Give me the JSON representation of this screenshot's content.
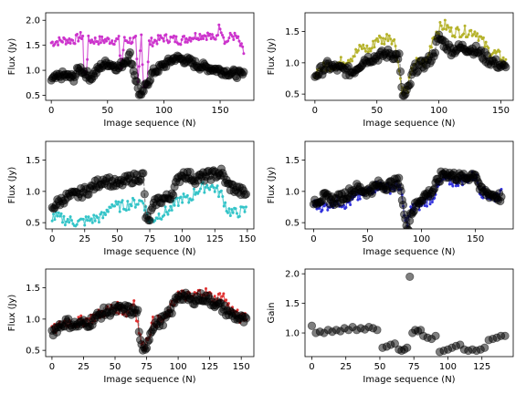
{
  "colors": {
    "magenta": "#cc33cc",
    "olive": "#b5b22a",
    "cyan": "#33c4c8",
    "blue": "#3333dd",
    "red": "#e03030",
    "ref": "#555555",
    "ref_marker": "#000000"
  },
  "chart_data": [
    {
      "type": "line",
      "xlabel": "Image sequence (N)",
      "ylabel": "Flux (Jy)",
      "xlim": [
        -5,
        180
      ],
      "ylim": [
        0.4,
        2.15
      ],
      "xticks": [
        0,
        50,
        100,
        150
      ],
      "yticks": [
        0.5,
        1.0,
        1.5,
        2.0
      ],
      "ytick_labels": [
        "0.5",
        "1.0",
        "1.5",
        "2.0"
      ],
      "series_color_key": "magenta",
      "series_start": 0,
      "series_n": 172,
      "series_anchors": [
        [
          0,
          1.55
        ],
        [
          10,
          1.6
        ],
        [
          20,
          1.6
        ],
        [
          28,
          1.7
        ],
        [
          29,
          0.95
        ],
        [
          31,
          0.95
        ],
        [
          33,
          1.6
        ],
        [
          45,
          1.6
        ],
        [
          50,
          1.6
        ],
        [
          60,
          1.6
        ],
        [
          62,
          1.05
        ],
        [
          65,
          1.6
        ],
        [
          75,
          1.6
        ],
        [
          77,
          0.7
        ],
        [
          80,
          1.7
        ],
        [
          82,
          0.7
        ],
        [
          85,
          0.72
        ],
        [
          87,
          1.55
        ],
        [
          100,
          1.65
        ],
        [
          115,
          1.6
        ],
        [
          130,
          1.7
        ],
        [
          140,
          1.7
        ],
        [
          145,
          1.6
        ],
        [
          150,
          1.9
        ],
        [
          155,
          1.55
        ],
        [
          160,
          1.7
        ],
        [
          165,
          1.65
        ],
        [
          171,
          1.35
        ]
      ],
      "ref_start": 0,
      "ref_n": 172,
      "ref_anchors": [
        [
          0,
          0.8
        ],
        [
          10,
          0.9
        ],
        [
          20,
          0.85
        ],
        [
          25,
          1.05
        ],
        [
          35,
          0.85
        ],
        [
          45,
          1.1
        ],
        [
          50,
          1.15
        ],
        [
          60,
          1.05
        ],
        [
          70,
          1.3
        ],
        [
          78,
          0.55
        ],
        [
          80,
          0.45
        ],
        [
          82,
          0.6
        ],
        [
          90,
          0.95
        ],
        [
          100,
          1.1
        ],
        [
          110,
          1.25
        ],
        [
          120,
          1.2
        ],
        [
          130,
          1.1
        ],
        [
          140,
          1.05
        ],
        [
          150,
          1.0
        ],
        [
          160,
          0.95
        ],
        [
          171,
          0.9
        ]
      ]
    },
    {
      "type": "line",
      "xlabel": "Image sequence (N)",
      "ylabel": "Flux (Jy)",
      "xlim": [
        -8,
        160
      ],
      "ylim": [
        0.4,
        1.8
      ],
      "xticks": [
        0,
        50,
        100,
        150
      ],
      "yticks": [
        0.5,
        1.0,
        1.5
      ],
      "ytick_labels": [
        "0.5",
        "1.0",
        "1.5"
      ],
      "series_color_key": "olive",
      "series_start": 0,
      "series_n": 155,
      "series_anchors": [
        [
          0,
          0.85
        ],
        [
          10,
          0.95
        ],
        [
          20,
          1.0
        ],
        [
          30,
          1.1
        ],
        [
          38,
          1.25
        ],
        [
          45,
          1.2
        ],
        [
          50,
          1.4
        ],
        [
          55,
          1.35
        ],
        [
          60,
          1.45
        ],
        [
          65,
          1.3
        ],
        [
          70,
          0.6
        ],
        [
          72,
          0.5
        ],
        [
          75,
          0.6
        ],
        [
          80,
          1.0
        ],
        [
          90,
          1.0
        ],
        [
          95,
          1.4
        ],
        [
          100,
          1.55
        ],
        [
          105,
          1.6
        ],
        [
          110,
          1.5
        ],
        [
          120,
          1.5
        ],
        [
          130,
          1.5
        ],
        [
          140,
          1.2
        ],
        [
          150,
          1.1
        ],
        [
          154,
          1.0
        ]
      ],
      "ref_start": 0,
      "ref_n": 155,
      "ref_anchors": [
        [
          0,
          0.8
        ],
        [
          10,
          0.95
        ],
        [
          20,
          0.9
        ],
        [
          30,
          0.85
        ],
        [
          40,
          1.05
        ],
        [
          50,
          1.1
        ],
        [
          60,
          1.15
        ],
        [
          68,
          1.1
        ],
        [
          70,
          0.55
        ],
        [
          72,
          0.45
        ],
        [
          76,
          0.6
        ],
        [
          80,
          0.9
        ],
        [
          90,
          1.0
        ],
        [
          95,
          1.1
        ],
        [
          100,
          1.4
        ],
        [
          105,
          1.3
        ],
        [
          110,
          1.2
        ],
        [
          120,
          1.25
        ],
        [
          130,
          1.2
        ],
        [
          140,
          1.05
        ],
        [
          150,
          0.95
        ],
        [
          154,
          0.9
        ]
      ]
    },
    {
      "type": "line",
      "xlabel": "Image sequence (N)",
      "ylabel": "Flux (Jy)",
      "xlim": [
        -5,
        155
      ],
      "ylim": [
        0.4,
        1.8
      ],
      "xticks": [
        0,
        25,
        50,
        75,
        100,
        125,
        150
      ],
      "yticks": [
        0.5,
        1.0,
        1.5
      ],
      "ytick_labels": [
        "0.5",
        "1.0",
        "1.5"
      ],
      "series_color_key": "cyan",
      "series_start": 0,
      "series_n": 150,
      "series_anchors": [
        [
          0,
          0.6
        ],
        [
          10,
          0.55
        ],
        [
          20,
          0.5
        ],
        [
          30,
          0.55
        ],
        [
          40,
          0.6
        ],
        [
          45,
          0.8
        ],
        [
          50,
          0.75
        ],
        [
          60,
          0.8
        ],
        [
          70,
          0.85
        ],
        [
          75,
          0.5
        ],
        [
          80,
          0.6
        ],
        [
          90,
          0.7
        ],
        [
          100,
          0.9
        ],
        [
          105,
          0.85
        ],
        [
          110,
          1.0
        ],
        [
          120,
          1.1
        ],
        [
          125,
          1.05
        ],
        [
          130,
          0.95
        ],
        [
          135,
          0.7
        ],
        [
          140,
          0.65
        ],
        [
          149,
          0.7
        ]
      ],
      "ref_start": 0,
      "ref_n": 150,
      "ref_anchors": [
        [
          0,
          0.75
        ],
        [
          10,
          0.9
        ],
        [
          20,
          0.95
        ],
        [
          30,
          1.05
        ],
        [
          40,
          1.2
        ],
        [
          50,
          1.1
        ],
        [
          60,
          1.2
        ],
        [
          70,
          1.25
        ],
        [
          72,
          0.6
        ],
        [
          74,
          0.5
        ],
        [
          76,
          0.65
        ],
        [
          80,
          0.85
        ],
        [
          90,
          0.9
        ],
        [
          95,
          1.1
        ],
        [
          100,
          1.3
        ],
        [
          110,
          1.2
        ],
        [
          120,
          1.25
        ],
        [
          130,
          1.3
        ],
        [
          135,
          1.1
        ],
        [
          140,
          1.05
        ],
        [
          149,
          0.95
        ]
      ]
    },
    {
      "type": "line",
      "xlabel": "Image sequence (N)",
      "ylabel": "Flux (Jy)",
      "xlim": [
        -8,
        185
      ],
      "ylim": [
        0.4,
        1.8
      ],
      "xticks": [
        0,
        50,
        100,
        150
      ],
      "yticks": [
        0.5,
        1.0,
        1.5
      ],
      "ytick_labels": [
        "0.5",
        "1.0",
        "1.5"
      ],
      "series_color_key": "blue",
      "series_start": 0,
      "series_n": 175,
      "series_anchors": [
        [
          0,
          0.8
        ],
        [
          10,
          0.75
        ],
        [
          20,
          0.85
        ],
        [
          30,
          0.8
        ],
        [
          40,
          0.9
        ],
        [
          50,
          1.0
        ],
        [
          60,
          1.1
        ],
        [
          70,
          1.05
        ],
        [
          80,
          1.1
        ],
        [
          85,
          0.5
        ],
        [
          88,
          0.55
        ],
        [
          90,
          0.7
        ],
        [
          100,
          0.8
        ],
        [
          110,
          0.9
        ],
        [
          120,
          1.2
        ],
        [
          130,
          1.15
        ],
        [
          140,
          1.2
        ],
        [
          150,
          1.25
        ],
        [
          155,
          1.0
        ],
        [
          165,
          0.9
        ],
        [
          174,
          0.95
        ]
      ],
      "ref_start": 0,
      "ref_n": 175,
      "ref_anchors": [
        [
          0,
          0.85
        ],
        [
          10,
          0.9
        ],
        [
          20,
          0.85
        ],
        [
          30,
          0.95
        ],
        [
          40,
          1.05
        ],
        [
          50,
          1.0
        ],
        [
          60,
          1.1
        ],
        [
          70,
          1.1
        ],
        [
          80,
          1.15
        ],
        [
          85,
          0.5
        ],
        [
          88,
          0.45
        ],
        [
          90,
          0.65
        ],
        [
          100,
          0.9
        ],
        [
          110,
          1.0
        ],
        [
          120,
          1.3
        ],
        [
          130,
          1.25
        ],
        [
          140,
          1.2
        ],
        [
          150,
          1.3
        ],
        [
          155,
          1.0
        ],
        [
          165,
          0.95
        ],
        [
          174,
          0.9
        ]
      ]
    },
    {
      "type": "line",
      "xlabel": "Image sequence (N)",
      "ylabel": "Flux (Jy)",
      "xlim": [
        -5,
        160
      ],
      "ylim": [
        0.4,
        1.8
      ],
      "xticks": [
        0,
        25,
        50,
        75,
        100,
        125,
        150
      ],
      "yticks": [
        0.5,
        1.0,
        1.5
      ],
      "ytick_labels": [
        "0.5",
        "1.0",
        "1.5"
      ],
      "series_color_key": "red",
      "series_start": 0,
      "series_n": 155,
      "series_anchors": [
        [
          0,
          0.8
        ],
        [
          10,
          0.95
        ],
        [
          20,
          0.95
        ],
        [
          30,
          1.0
        ],
        [
          40,
          1.1
        ],
        [
          50,
          1.2
        ],
        [
          60,
          1.1
        ],
        [
          65,
          1.3
        ],
        [
          70,
          0.7
        ],
        [
          72,
          0.55
        ],
        [
          75,
          0.65
        ],
        [
          80,
          0.95
        ],
        [
          90,
          1.0
        ],
        [
          95,
          1.2
        ],
        [
          100,
          1.4
        ],
        [
          110,
          1.35
        ],
        [
          120,
          1.45
        ],
        [
          130,
          1.3
        ],
        [
          135,
          1.4
        ],
        [
          140,
          1.2
        ],
        [
          150,
          1.0
        ],
        [
          154,
          1.05
        ]
      ],
      "ref_start": 0,
      "ref_n": 155,
      "ref_anchors": [
        [
          0,
          0.8
        ],
        [
          10,
          0.95
        ],
        [
          20,
          0.9
        ],
        [
          30,
          0.95
        ],
        [
          40,
          1.1
        ],
        [
          50,
          1.15
        ],
        [
          60,
          1.15
        ],
        [
          68,
          1.1
        ],
        [
          70,
          0.6
        ],
        [
          72,
          0.45
        ],
        [
          75,
          0.6
        ],
        [
          80,
          0.9
        ],
        [
          90,
          1.0
        ],
        [
          95,
          1.15
        ],
        [
          100,
          1.4
        ],
        [
          110,
          1.3
        ],
        [
          120,
          1.35
        ],
        [
          130,
          1.25
        ],
        [
          140,
          1.1
        ],
        [
          150,
          1.0
        ],
        [
          154,
          0.95
        ]
      ]
    },
    {
      "type": "scatter",
      "xlabel": "Image sequence (N)",
      "ylabel": "Gain",
      "xlim": [
        -5,
        148
      ],
      "ylim": [
        0.6,
        2.08
      ],
      "xticks": [
        0,
        25,
        50,
        75,
        100,
        125
      ],
      "yticks": [
        1.0,
        1.5,
        2.0
      ],
      "ytick_labels": [
        "1.0",
        "1.5",
        "2.0"
      ],
      "points": [
        [
          0,
          1.12
        ],
        [
          3,
          1.0
        ],
        [
          6,
          1.02
        ],
        [
          9,
          1.0
        ],
        [
          12,
          1.05
        ],
        [
          15,
          1.02
        ],
        [
          18,
          1.05
        ],
        [
          21,
          1.03
        ],
        [
          24,
          1.08
        ],
        [
          27,
          1.05
        ],
        [
          30,
          1.1
        ],
        [
          33,
          1.05
        ],
        [
          36,
          1.08
        ],
        [
          39,
          1.06
        ],
        [
          42,
          1.1
        ],
        [
          45,
          1.08
        ],
        [
          48,
          1.05
        ],
        [
          52,
          0.75
        ],
        [
          55,
          0.77
        ],
        [
          58,
          0.8
        ],
        [
          61,
          0.82
        ],
        [
          64,
          0.72
        ],
        [
          66,
          0.7
        ],
        [
          68,
          0.72
        ],
        [
          70,
          0.75
        ],
        [
          72,
          1.95
        ],
        [
          74,
          1.0
        ],
        [
          76,
          1.05
        ],
        [
          78,
          1.03
        ],
        [
          80,
          1.05
        ],
        [
          82,
          0.95
        ],
        [
          85,
          0.92
        ],
        [
          88,
          0.9
        ],
        [
          91,
          0.95
        ],
        [
          94,
          0.68
        ],
        [
          97,
          0.7
        ],
        [
          100,
          0.72
        ],
        [
          103,
          0.75
        ],
        [
          106,
          0.78
        ],
        [
          109,
          0.8
        ],
        [
          112,
          0.72
        ],
        [
          115,
          0.7
        ],
        [
          118,
          0.72
        ],
        [
          121,
          0.7
        ],
        [
          124,
          0.72
        ],
        [
          127,
          0.75
        ],
        [
          130,
          0.88
        ],
        [
          133,
          0.9
        ],
        [
          136,
          0.92
        ],
        [
          139,
          0.95
        ],
        [
          142,
          0.95
        ]
      ]
    }
  ]
}
